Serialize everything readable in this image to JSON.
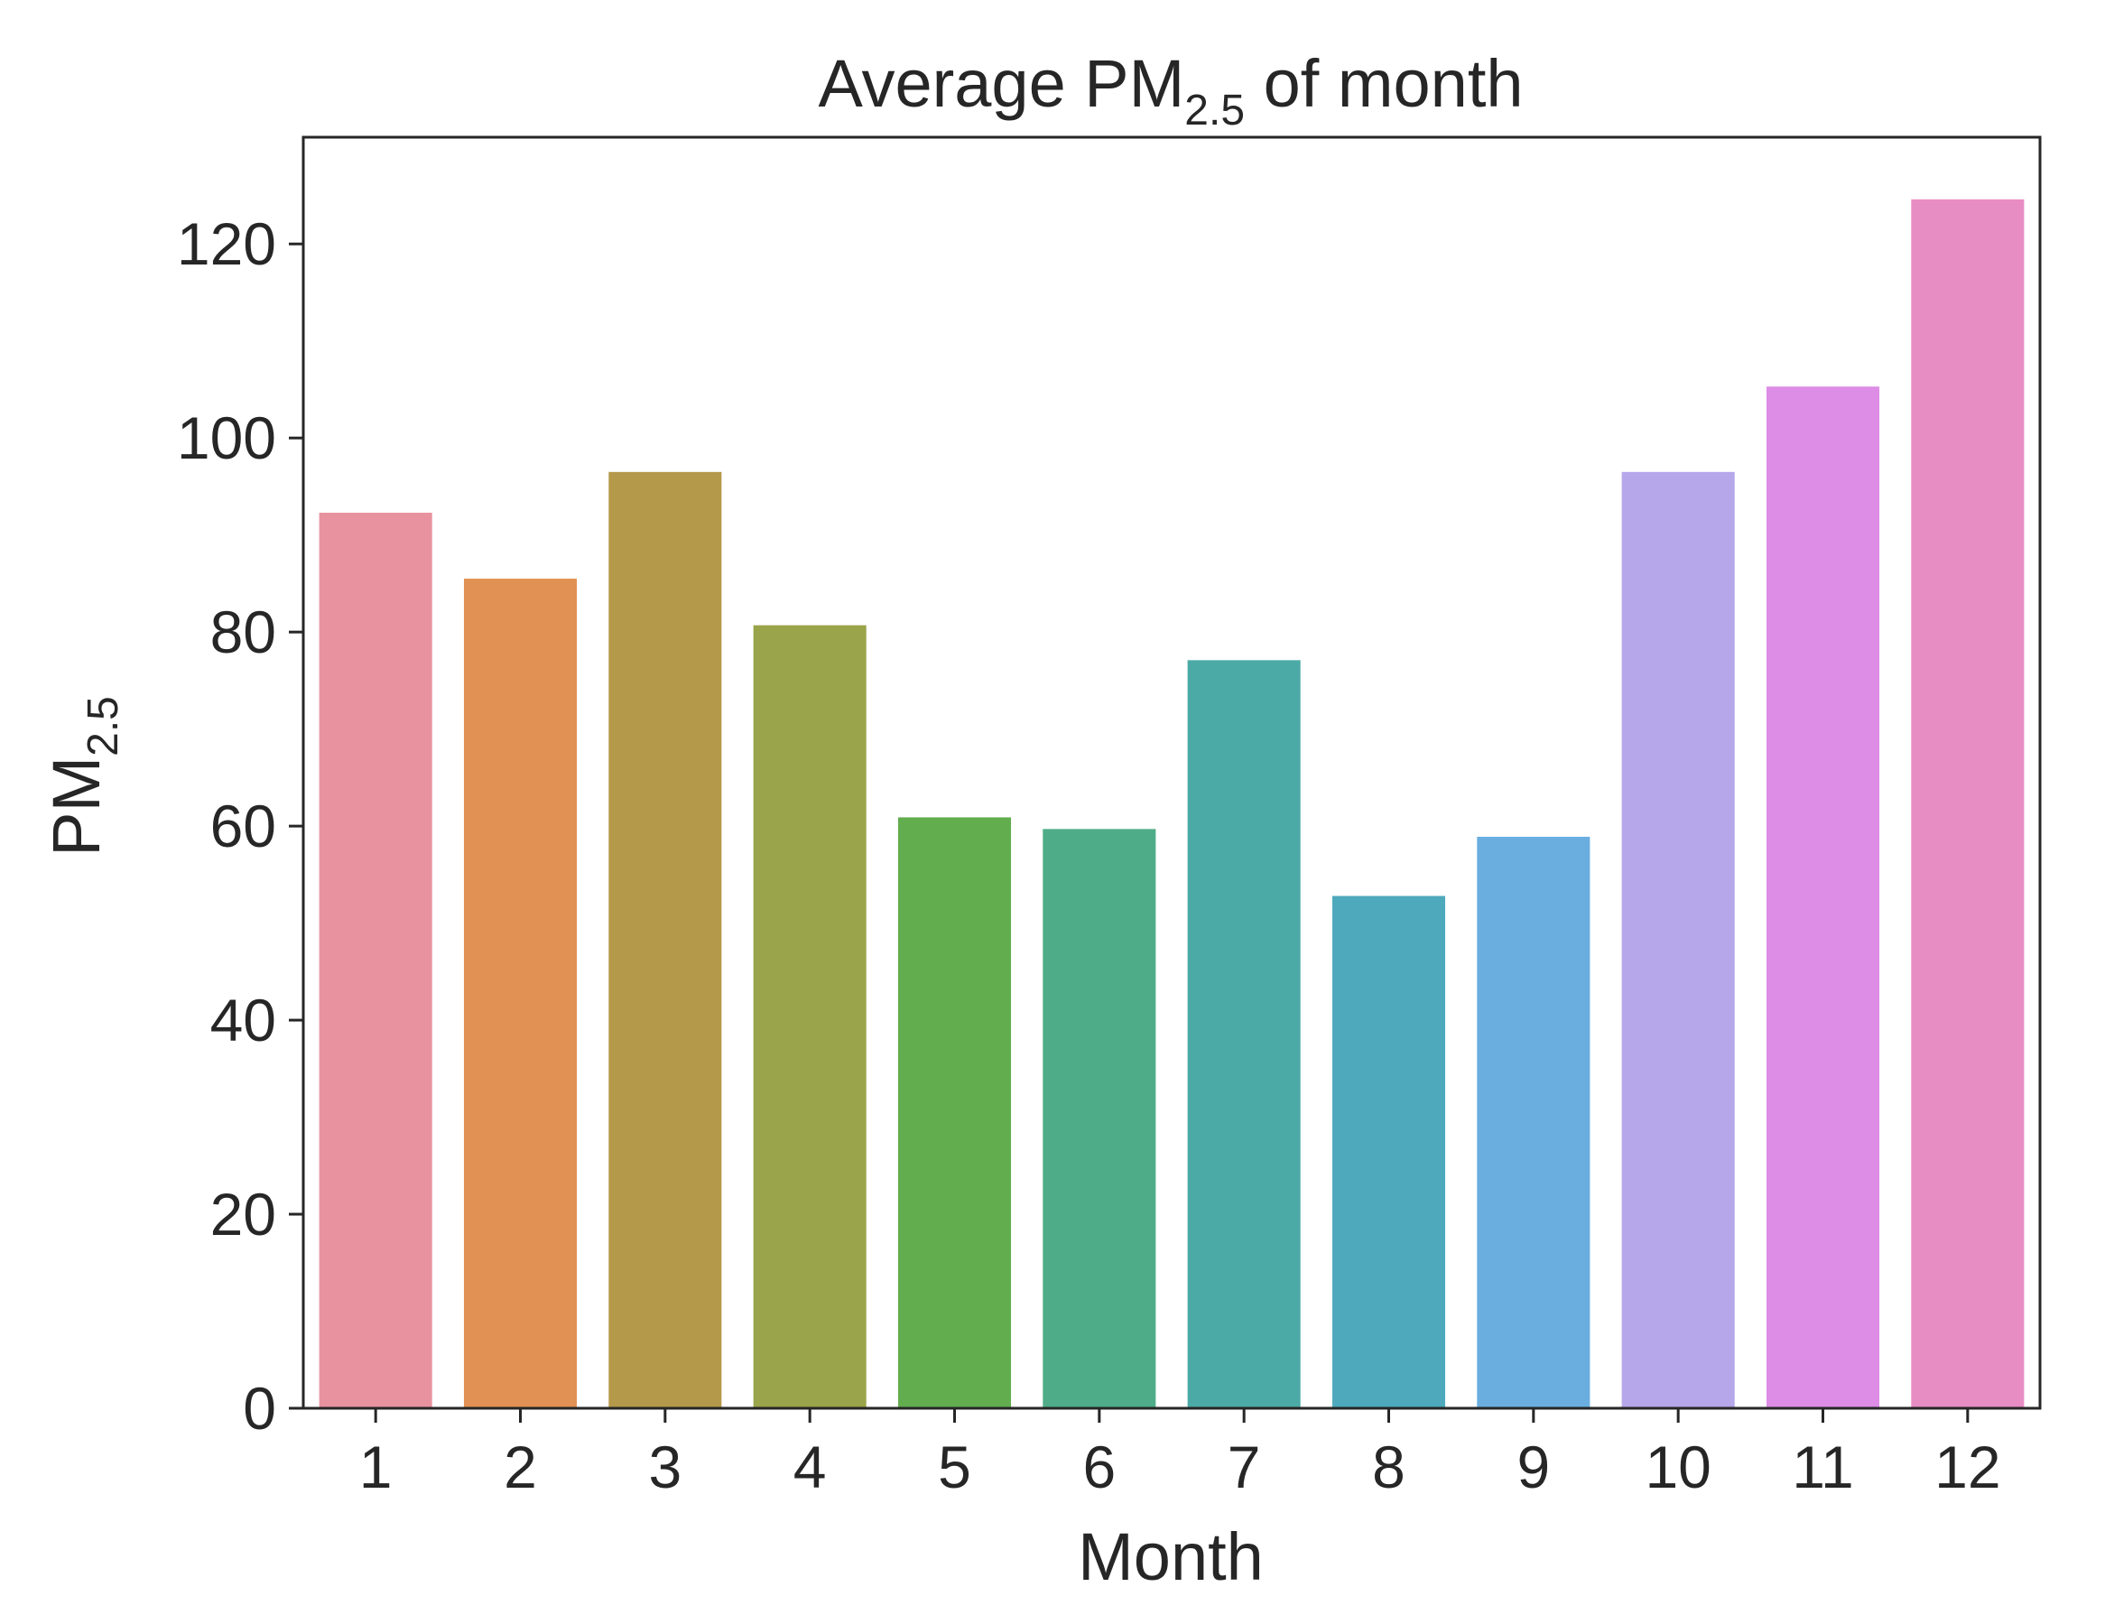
{
  "chart_data": {
    "type": "bar",
    "title": {
      "main": "Average PM",
      "sub": "2.5",
      "suffix": " of month"
    },
    "xlabel": "Month",
    "ylabel": {
      "main": "PM",
      "sub": "2.5"
    },
    "categories": [
      "1",
      "2",
      "3",
      "4",
      "5",
      "6",
      "7",
      "8",
      "9",
      "10",
      "11",
      "12"
    ],
    "values": [
      92.3,
      85.5,
      96.5,
      80.7,
      60.9,
      59.7,
      77.1,
      52.8,
      58.9,
      96.5,
      105.3,
      124.6
    ],
    "ylim": [
      0,
      131
    ],
    "yticks": [
      0,
      20,
      40,
      60,
      80,
      100,
      120
    ],
    "colors": [
      "#e8929f",
      "#e19153",
      "#b5994a",
      "#9aa44a",
      "#62ad4e",
      "#4ead88",
      "#4caaa6",
      "#4ea9bc",
      "#6aaee0",
      "#b6a6ea",
      "#dd8de6",
      "#e88cc4"
    ],
    "grid": false,
    "legend": "none"
  }
}
